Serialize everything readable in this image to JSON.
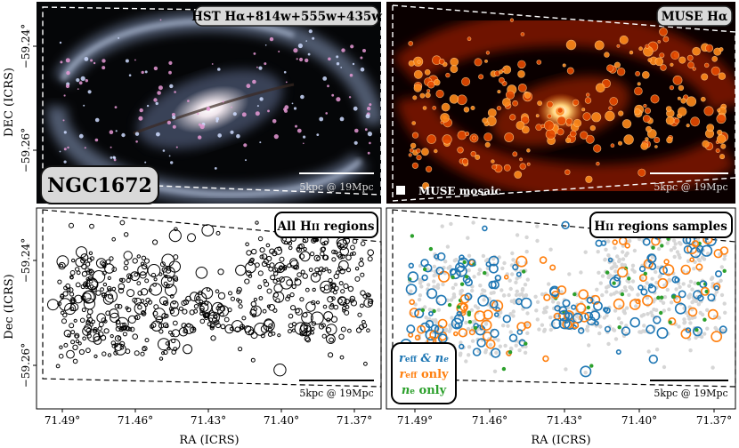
{
  "figure": {
    "ylabel_top": "DEC (ICRS)",
    "ylabel_bottom": "Dec (ICRS)",
    "xlabel": "RA (ICRS)",
    "y_ticks": [
      "−59.24°",
      "−59.26°"
    ],
    "x_ticks": [
      "71.49°",
      "71.46°",
      "71.43°",
      "71.40°",
      "71.37°"
    ]
  },
  "panels": {
    "hst": {
      "label": "HST Hα+814w+555w+435w",
      "galaxy": "NGC1672",
      "scalebar": "5kpc @ 19Mpc"
    },
    "muse": {
      "label": "MUSE Hα",
      "mosaic": "MUSE mosaic",
      "scalebar": "5kpc @ 19Mpc"
    },
    "all_regions": {
      "label": "All HII regions",
      "label_main": "All H",
      "label_small": "II",
      "label_tail": " regions",
      "scalebar": "5kpc @ 19Mpc"
    },
    "samples": {
      "label": "HII regions samples",
      "label_main": "H",
      "label_small": "II",
      "label_tail": " regions samples",
      "scalebar": "5kpc @ 19Mpc",
      "legend": [
        {
          "text": "r_eff & n_e",
          "color": "#1f77b4"
        },
        {
          "text": "r_eff only",
          "color": "#ff7f0e"
        },
        {
          "text": "n_e only",
          "color": "#2ca02c"
        }
      ]
    }
  },
  "colors": {
    "blue": "#1f77b4",
    "orange": "#ff7f0e",
    "green": "#2ca02c",
    "grey": "#cfcfcf"
  }
}
